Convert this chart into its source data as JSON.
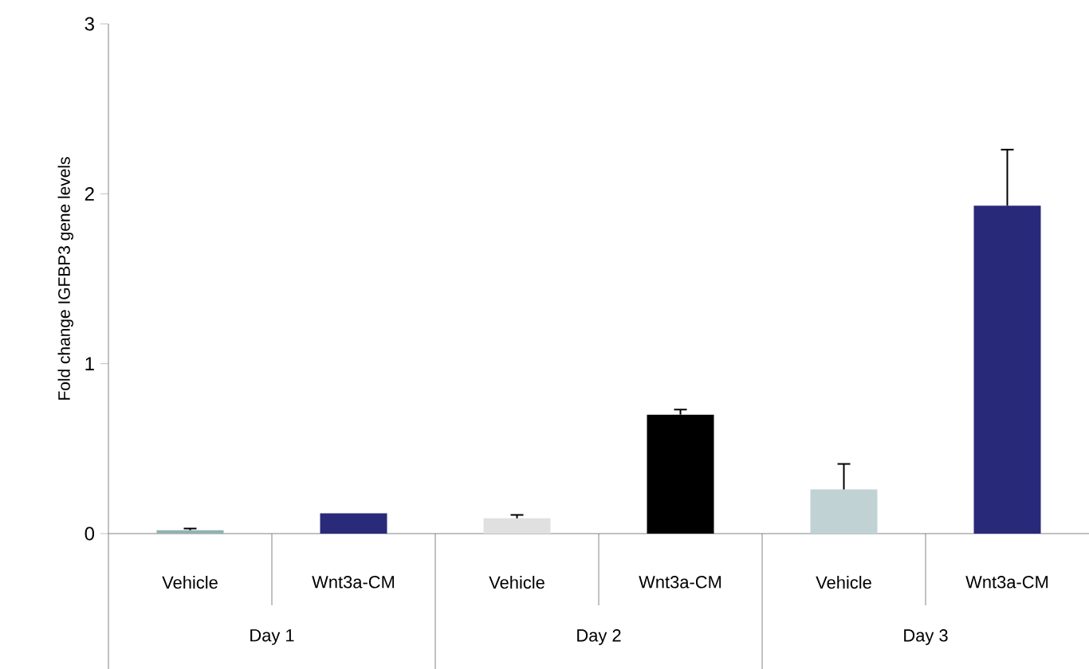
{
  "chart_data": {
    "type": "bar",
    "ylabel": "Fold change IGFBP3 gene levels",
    "categories": [
      "Vehicle",
      "Wnt3a-CM",
      "Vehicle",
      "Wnt3a-CM",
      "Vehicle",
      "Wnt3a-CM"
    ],
    "values": [
      0.02,
      0.12,
      0.09,
      0.7,
      0.26,
      1.93
    ],
    "errors": [
      0.01,
      null,
      0.02,
      0.03,
      0.15,
      0.33
    ],
    "colors": [
      "#8fb3b3",
      "#2a2a7a",
      "#e0e0e0",
      "#000000",
      "#c0d2d4",
      "#29297a"
    ],
    "annotations": [
      "Day 1",
      "Day 2",
      "Day 3"
    ],
    "ylim": [
      0,
      3
    ],
    "yticks": [
      0,
      1,
      2,
      3
    ],
    "grid": false
  }
}
